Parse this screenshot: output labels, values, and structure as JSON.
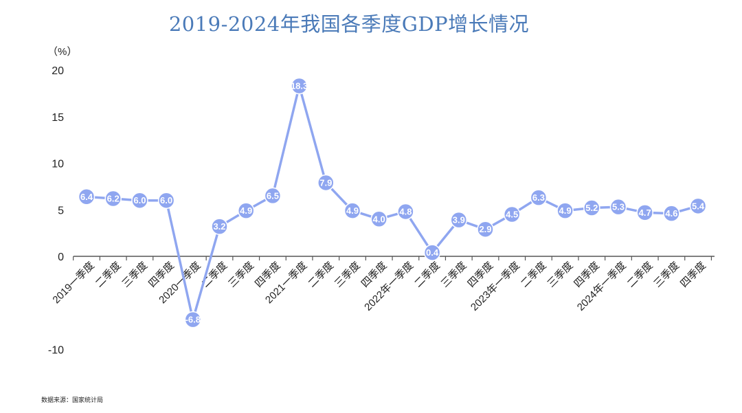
{
  "title": "2019-2024年我国各季度GDP增长情况",
  "source": "数据来源：国家统计局",
  "chart_data": {
    "type": "line",
    "title": "2019-2024年我国各季度GDP增长情况",
    "ylabel": "（%）",
    "xlabel": "",
    "ylim": [
      -10,
      20
    ],
    "yticks": [
      "20",
      "15",
      "10",
      "5",
      "0",
      "-10"
    ],
    "ytick_values": [
      20,
      15,
      10,
      5,
      0,
      -10
    ],
    "grid": false,
    "legend": "none",
    "line_color": "#8fa6f0",
    "categories": [
      "2019一季度",
      "二季度",
      "三季度",
      "四季度",
      "2020一季度",
      "二季度",
      "三季度",
      "四季度",
      "2021一季度",
      "二季度",
      "三季度",
      "四季度",
      "2022年一季度",
      "二季度",
      "三季度",
      "四季度",
      "2023年一季度",
      "二季度",
      "三季度",
      "四季度",
      "2024年一季度",
      "二季度",
      "三季度",
      "四季度"
    ],
    "values": [
      6.4,
      6.2,
      6.0,
      6.0,
      -6.8,
      3.2,
      4.9,
      6.5,
      18.3,
      7.9,
      4.9,
      4.0,
      4.8,
      0.4,
      3.9,
      2.9,
      4.5,
      6.3,
      4.9,
      5.2,
      5.3,
      4.7,
      4.6,
      5.4
    ],
    "data_labels": [
      "6.4",
      "6.2",
      "6.0",
      "6.0",
      "-6.8",
      "3.2",
      "4.9",
      "6.5",
      "18.3",
      "7.9",
      "4.9",
      "4.0",
      "4.8",
      "0.4",
      "3.9",
      "2.9",
      "4.5",
      "6.3",
      "4.9",
      "5.2",
      "5.3",
      "4.7",
      "4.6",
      "5.4"
    ]
  }
}
